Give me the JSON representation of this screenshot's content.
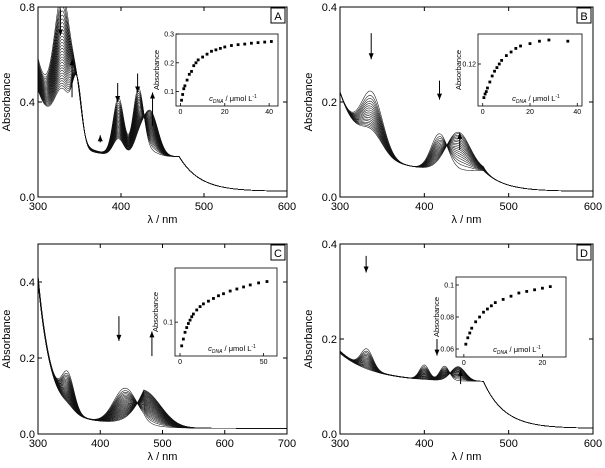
{
  "figure": {
    "panels": [
      {
        "label": "A",
        "xlabel": "λ / nm",
        "ylabel": "Absorbance",
        "xlim": [
          300,
          600
        ],
        "ylim": [
          0,
          0.8
        ],
        "xticks": [
          300,
          400,
          500,
          600
        ],
        "yticks": [
          0.0,
          0.4,
          0.8
        ],
        "curve_count": 30,
        "peaks": [
          {
            "center": 330,
            "width": 14,
            "start": 0.56,
            "end": 0.2
          },
          {
            "center": 347,
            "width": 8,
            "start": 0.15,
            "end": 0.25
          },
          {
            "center": 397,
            "width": 9,
            "start": 0.24,
            "end": 0.07
          },
          {
            "center": 421,
            "width": 9,
            "start": 0.28,
            "end": 0.05
          },
          {
            "center": 435,
            "width": 13,
            "start": 0.02,
            "end": 0.19
          }
        ],
        "background": {
          "base": 0.17,
          "start": 0.58,
          "end": 0.45,
          "decay": 25
        },
        "arrows": [
          {
            "x": 327,
            "y_tail": 0.79,
            "y_head": 0.68,
            "direction": "down"
          },
          {
            "x": 341,
            "y_tail": 0.42,
            "y_head": 0.58,
            "direction": "up"
          },
          {
            "x": 375,
            "y_tail": 0.23,
            "y_head": 0.26,
            "direction": "down"
          },
          {
            "x": 396,
            "y_tail": 0.48,
            "y_head": 0.4,
            "direction": "down"
          },
          {
            "x": 420,
            "y_tail": 0.52,
            "y_head": 0.44,
            "direction": "down"
          },
          {
            "x": 438,
            "y_tail": 0.3,
            "y_head": 0.44,
            "direction": "up"
          }
        ],
        "inset": {
          "xlabel_main": "c",
          "xlabel_sub": "DNA",
          "xlabel_unit": " / μmol L",
          "xlabel_sup": "-1",
          "ylabel": "Absorbance",
          "xlim": [
            -2,
            44
          ],
          "ylim": [
            0.05,
            0.3
          ],
          "xticks": [
            0,
            20,
            40
          ],
          "yticks": [
            0.1,
            0.2,
            0.3
          ],
          "points": [
            [
              0.5,
              0.07
            ],
            [
              1,
              0.09
            ],
            [
              1.5,
              0.11
            ],
            [
              2,
              0.12
            ],
            [
              3,
              0.14
            ],
            [
              4,
              0.16
            ],
            [
              5,
              0.17
            ],
            [
              6,
              0.19
            ],
            [
              7,
              0.2
            ],
            [
              8,
              0.21
            ],
            [
              10,
              0.22
            ],
            [
              12,
              0.23
            ],
            [
              14,
              0.24
            ],
            [
              16,
              0.245
            ],
            [
              18,
              0.25
            ],
            [
              20,
              0.255
            ],
            [
              23,
              0.26
            ],
            [
              26,
              0.263
            ],
            [
              29,
              0.265
            ],
            [
              32,
              0.268
            ],
            [
              35,
              0.27
            ],
            [
              38,
              0.272
            ],
            [
              41,
              0.274
            ]
          ]
        }
      },
      {
        "label": "B",
        "xlabel": "λ / nm",
        "ylabel": "Absorbance",
        "xlim": [
          300,
          600
        ],
        "ylim": [
          0,
          0.4
        ],
        "xticks": [
          300,
          400,
          500,
          600
        ],
        "yticks": [
          0.0,
          0.2,
          0.4
        ],
        "curve_count": 18,
        "peaks": [
          {
            "center": 338,
            "width": 18,
            "start": 0.12,
            "end": 0.04
          },
          {
            "center": 418,
            "width": 14,
            "start": 0.075,
            "end": 0.0
          },
          {
            "center": 440,
            "width": 20,
            "start": 0.0,
            "end": 0.08
          }
        ],
        "background": {
          "base": 0.055,
          "start": 0.22,
          "end": 0.22,
          "decay": 30
        },
        "arrows": [
          {
            "x": 337,
            "y_tail": 0.345,
            "y_head": 0.29,
            "direction": "down"
          },
          {
            "x": 418,
            "y_tail": 0.245,
            "y_head": 0.205,
            "direction": "down"
          },
          {
            "x": 442,
            "y_tail": 0.1,
            "y_head": 0.135,
            "direction": "up"
          }
        ],
        "inset": {
          "xlabel_main": "c",
          "xlabel_sub": "DNA",
          "xlabel_unit": " / μmol L",
          "xlabel_sup": "-1",
          "ylabel": "Absorbance",
          "xlim": [
            -2,
            42
          ],
          "ylim": [
            0.085,
            0.145
          ],
          "xticks": [
            0,
            20,
            40
          ],
          "yticks": [
            0.12
          ],
          "points": [
            [
              0.5,
              0.092
            ],
            [
              1,
              0.095
            ],
            [
              1.5,
              0.097
            ],
            [
              2,
              0.1
            ],
            [
              3,
              0.105
            ],
            [
              4,
              0.11
            ],
            [
              5,
              0.114
            ],
            [
              6,
              0.117
            ],
            [
              7,
              0.12
            ],
            [
              8,
              0.123
            ],
            [
              10,
              0.127
            ],
            [
              12,
              0.13
            ],
            [
              14,
              0.133
            ],
            [
              16,
              0.135
            ],
            [
              20,
              0.137
            ],
            [
              24,
              0.139
            ],
            [
              28,
              0.14
            ],
            [
              36,
              0.139
            ]
          ]
        }
      },
      {
        "label": "C",
        "xlabel": "λ / nm",
        "ylabel": "Absorbance",
        "xlim": [
          300,
          700
        ],
        "ylim": [
          0,
          0.5
        ],
        "xticks": [
          300,
          400,
          500,
          600,
          700
        ],
        "yticks": [
          0.0,
          0.2,
          0.4
        ],
        "curve_count": 28,
        "peaks": [
          {
            "center": 348,
            "width": 14,
            "start": 0.09,
            "end": 0.01
          },
          {
            "center": 440,
            "width": 26,
            "start": 0.09,
            "end": 0.0
          },
          {
            "center": 500,
            "width": 38,
            "start": 0.0,
            "end": 0.16
          }
        ],
        "background": {
          "base": 0.03,
          "start": 0.42,
          "end": 0.4,
          "decay": 22
        },
        "arrows": [
          {
            "x": 430,
            "y_tail": 0.31,
            "y_head": 0.245,
            "direction": "down"
          },
          {
            "x": 483,
            "y_tail": 0.205,
            "y_head": 0.27,
            "direction": "up"
          }
        ],
        "inset": {
          "xlabel_main": "c",
          "xlabel_sub": "DNA",
          "xlabel_unit": " / μmol L",
          "xlabel_sup": "-1",
          "ylabel": "Absorbance",
          "xlim": [
            -3,
            58
          ],
          "ylim": [
            0.05,
            0.18
          ],
          "xticks": [
            0,
            50
          ],
          "yticks": [
            0.1
          ],
          "points": [
            [
              1,
              0.065
            ],
            [
              2,
              0.075
            ],
            [
              3,
              0.085
            ],
            [
              4,
              0.092
            ],
            [
              5,
              0.098
            ],
            [
              6,
              0.103
            ],
            [
              7,
              0.108
            ],
            [
              8,
              0.112
            ],
            [
              10,
              0.118
            ],
            [
              12,
              0.123
            ],
            [
              14,
              0.127
            ],
            [
              17,
              0.131
            ],
            [
              20,
              0.135
            ],
            [
              23,
              0.139
            ],
            [
              26,
              0.142
            ],
            [
              30,
              0.146
            ],
            [
              34,
              0.149
            ],
            [
              38,
              0.152
            ],
            [
              42,
              0.155
            ],
            [
              47,
              0.158
            ],
            [
              52,
              0.16
            ]
          ]
        }
      },
      {
        "label": "D",
        "xlabel": "λ / nm",
        "ylabel": "Absorbance",
        "xlim": [
          300,
          600
        ],
        "ylim": [
          0,
          0.4
        ],
        "xticks": [
          300,
          400,
          500,
          600
        ],
        "yticks": [
          0.0,
          0.2,
          0.4
        ],
        "curve_count": 18,
        "peaks": [
          {
            "center": 332,
            "width": 10,
            "start": 0.04,
            "end": 0.0
          },
          {
            "center": 400,
            "width": 8,
            "start": 0.03,
            "end": 0.0
          },
          {
            "center": 424,
            "width": 8,
            "start": 0.03,
            "end": 0.0
          },
          {
            "center": 440,
            "width": 12,
            "start": 0.0,
            "end": 0.03
          }
        ],
        "background": {
          "base": 0.11,
          "start": 0.175,
          "end": 0.17,
          "decay": 40
        },
        "arrows": [
          {
            "x": 331,
            "y_tail": 0.375,
            "y_head": 0.34,
            "direction": "down"
          },
          {
            "x": 415,
            "y_tail": 0.2,
            "y_head": 0.165,
            "direction": "down"
          },
          {
            "x": 443,
            "y_tail": 0.105,
            "y_head": 0.135,
            "direction": "up"
          }
        ],
        "inset": {
          "xlabel_main": "c",
          "xlabel_sub": "DNA",
          "xlabel_unit": " / μmol L",
          "xlabel_sup": "-1",
          "ylabel": "Absorbance",
          "xlim": [
            -2,
            26
          ],
          "ylim": [
            0.055,
            0.105
          ],
          "xticks": [
            0,
            20
          ],
          "yticks": [
            0.06,
            0.08,
            0.1
          ],
          "points": [
            [
              0.5,
              0.063
            ],
            [
              1,
              0.067
            ],
            [
              1.5,
              0.07
            ],
            [
              2,
              0.073
            ],
            [
              3,
              0.077
            ],
            [
              4,
              0.08
            ],
            [
              5,
              0.083
            ],
            [
              6,
              0.085
            ],
            [
              7,
              0.087
            ],
            [
              8,
              0.089
            ],
            [
              10,
              0.091
            ],
            [
              12,
              0.093
            ],
            [
              14,
              0.095
            ],
            [
              16,
              0.096
            ],
            [
              18,
              0.097
            ],
            [
              20,
              0.098
            ],
            [
              22,
              0.099
            ]
          ]
        }
      }
    ]
  },
  "chart_data": [
    {
      "type": "line",
      "panel": "A",
      "xlabel": "λ / nm",
      "ylabel": "Absorbance",
      "xlim": [
        300,
        600
      ],
      "ylim": [
        0,
        0.8
      ],
      "curves": 30,
      "grid": false
    },
    {
      "type": "line",
      "panel": "B",
      "xlabel": "λ / nm",
      "ylabel": "Absorbance",
      "xlim": [
        300,
        600
      ],
      "ylim": [
        0,
        0.4
      ],
      "curves": 18,
      "grid": false
    },
    {
      "type": "line",
      "panel": "C",
      "xlabel": "λ / nm",
      "ylabel": "Absorbance",
      "xlim": [
        300,
        700
      ],
      "ylim": [
        0,
        0.5
      ],
      "curves": 28,
      "grid": false
    },
    {
      "type": "line",
      "panel": "D",
      "xlabel": "λ / nm",
      "ylabel": "Absorbance",
      "xlim": [
        300,
        600
      ],
      "ylim": [
        0,
        0.4
      ],
      "curves": 18,
      "grid": false
    }
  ]
}
